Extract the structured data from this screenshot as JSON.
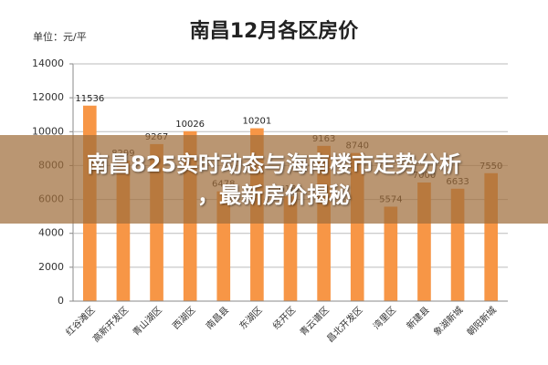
{
  "chart_data": {
    "type": "bar",
    "title": "南昌12月各区房价",
    "unit_label": "单位：元/平",
    "categories": [
      "红谷滩区",
      "高新开发区",
      "青山湖区",
      "西湖区",
      "南昌县",
      "东湖区",
      "经开区",
      "青云谱区",
      "昌北开发区",
      "湾里区",
      "新建县",
      "象湖新城",
      "朝阳新城"
    ],
    "values": [
      11536,
      8299,
      9267,
      10026,
      6478,
      10201,
      6182,
      9163,
      8740,
      5574,
      7000,
      6633,
      7550
    ],
    "color": "#f79646",
    "ylim": [
      0,
      14000
    ],
    "yticks": [
      0,
      2000,
      4000,
      6000,
      8000,
      10000,
      12000,
      14000
    ],
    "grid": true
  },
  "overlay": {
    "lines": [
      "南昌825实时动态与海南楼市走势分析",
      "，最新房价揭秘"
    ]
  }
}
